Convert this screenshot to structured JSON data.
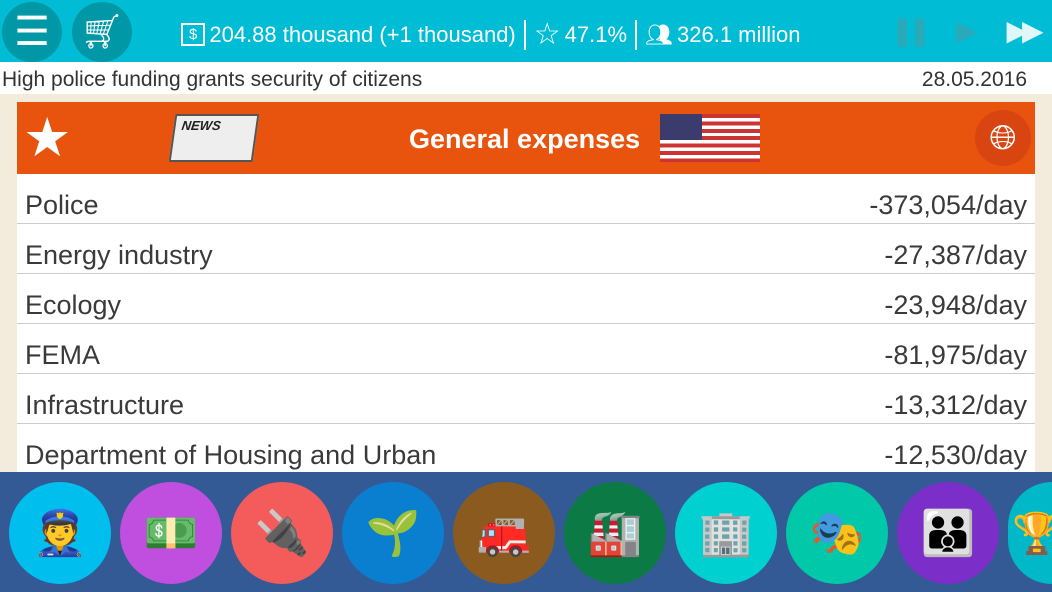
{
  "topbar": {
    "money": "204.88 thousand (+1 thousand)",
    "rating": "47.1%",
    "population": "326.1 million"
  },
  "news_ticker": "High police funding grants security of citizens",
  "date": "28.05.2016",
  "panel": {
    "title": "General expenses"
  },
  "expenses": [
    {
      "name": "Police",
      "value": "-373,054/day"
    },
    {
      "name": "Energy industry",
      "value": "-27,387/day"
    },
    {
      "name": "Ecology",
      "value": "-23,948/day"
    },
    {
      "name": "FEMA",
      "value": "-81,975/day"
    },
    {
      "name": "Infrastructure",
      "value": "-13,312/day"
    },
    {
      "name": "Department of Housing and Urban",
      "value": "-12,530/day"
    }
  ],
  "categories": [
    {
      "icon": "police-icon",
      "color": "#00bfef"
    },
    {
      "icon": "finance-icon",
      "color": "#c04fe0"
    },
    {
      "icon": "energy-plug-icon",
      "color": "#f45b5b"
    },
    {
      "icon": "ecology-plant-icon",
      "color": "#0a7fd0"
    },
    {
      "icon": "fire-station-icon",
      "color": "#8b5a1e"
    },
    {
      "icon": "factory-icon",
      "color": "#0b7a45"
    },
    {
      "icon": "housing-icon",
      "color": "#00d0d0"
    },
    {
      "icon": "culture-theater-icon",
      "color": "#00c8a8"
    },
    {
      "icon": "people-icon",
      "color": "#7b2ec8"
    },
    {
      "icon": "trophy-icon",
      "color": "#00b8c8"
    }
  ]
}
